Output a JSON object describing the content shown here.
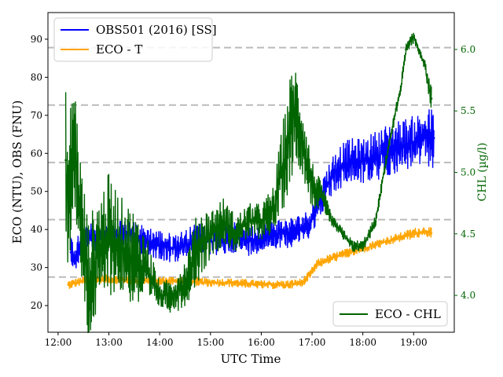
{
  "chart_data": {
    "type": "line",
    "xlabel": "UTC Time",
    "ylabel_left": "ECO (NTU), OBS (FNU)",
    "ylabel_right": "CHL (µg/l)",
    "x_ticks": [
      "12:00",
      "13:00",
      "14:00",
      "15:00",
      "16:00",
      "17:00",
      "18:00",
      "19:00"
    ],
    "x_range_hours": [
      11.8,
      19.8
    ],
    "y_left_ticks": [
      20,
      30,
      40,
      50,
      60,
      70,
      80,
      90
    ],
    "y_left_range": [
      13,
      97
    ],
    "y_right_ticks": [
      "4.0",
      "4.5",
      "5.0",
      "5.5",
      "6.0"
    ],
    "y_right_range": [
      3.7,
      6.3
    ],
    "gridlines_left": [
      27.5,
      42.6,
      57.6,
      72.7,
      87.8
    ],
    "grid": "dashed horizontal",
    "legend_left_placement": "top-left",
    "legend_right_placement": "bottom-right",
    "series": [
      {
        "name": "OBS501 (2016) [SS]",
        "axis": "left",
        "color": "#0000ff",
        "x": [
          12.25,
          12.33,
          12.45,
          12.6,
          12.75,
          13.0,
          13.25,
          13.5,
          13.75,
          14.0,
          14.25,
          14.5,
          14.75,
          15.0,
          15.25,
          15.5,
          15.75,
          16.0,
          16.25,
          16.5,
          16.75,
          16.9,
          17.0,
          17.15,
          17.3,
          17.5,
          17.75,
          18.0,
          18.25,
          18.5,
          18.75,
          19.0,
          19.25,
          19.4
        ],
        "y": [
          34,
          33,
          36,
          38,
          37,
          38,
          39,
          38,
          37,
          36,
          35,
          36,
          38,
          37,
          37,
          38,
          37,
          38,
          39,
          39,
          40,
          41,
          43,
          47,
          52,
          56,
          58,
          58,
          59,
          61,
          62,
          63,
          64,
          64
        ],
        "band": [
          4,
          4,
          4,
          4,
          4,
          4,
          4,
          4,
          4,
          4,
          4,
          4,
          4,
          4,
          4,
          4,
          4,
          4,
          4,
          4,
          4,
          4,
          4,
          4,
          5,
          6,
          6,
          6,
          7,
          7,
          7,
          7,
          8,
          8
        ]
      },
      {
        "name": "ECO - T",
        "axis": "left",
        "color": "#ffa500",
        "x": [
          12.2,
          12.5,
          12.75,
          13.0,
          13.5,
          14.0,
          14.5,
          15.0,
          15.5,
          16.0,
          16.5,
          16.8,
          16.95,
          17.1,
          17.3,
          17.5,
          17.75,
          18.0,
          18.25,
          18.5,
          18.75,
          19.0,
          19.25,
          19.35
        ],
        "y": [
          25.5,
          26.5,
          27,
          27,
          26.5,
          26.5,
          26.5,
          26,
          26,
          25.5,
          25.5,
          26,
          28,
          31,
          32,
          33,
          34,
          35,
          36,
          37,
          38,
          39,
          39.5,
          39
        ],
        "band": [
          1.2,
          1.2,
          1.2,
          1.2,
          1.2,
          1.2,
          1.2,
          1.2,
          1.2,
          1.2,
          1.2,
          1.2,
          1.2,
          1.2,
          1.3,
          1.3,
          1.3,
          1.3,
          1.3,
          1.3,
          1.3,
          1.5,
          1.5,
          1.5
        ]
      },
      {
        "name": "ECO - CHL",
        "axis": "right",
        "color": "#006400",
        "x": [
          12.15,
          12.2,
          12.3,
          12.45,
          12.6,
          12.75,
          13.0,
          13.25,
          13.5,
          13.75,
          14.0,
          14.25,
          14.5,
          14.75,
          15.0,
          15.25,
          15.5,
          15.75,
          16.0,
          16.25,
          16.4,
          16.55,
          16.65,
          16.8,
          17.0,
          17.2,
          17.4,
          17.6,
          17.8,
          18.0,
          18.25,
          18.5,
          18.75,
          18.85,
          19.0,
          19.2,
          19.35
        ],
        "y": [
          5.1,
          4.7,
          5.3,
          4.6,
          4.1,
          4.3,
          4.5,
          4.4,
          4.3,
          4.2,
          4.0,
          4.0,
          4.1,
          4.4,
          4.5,
          4.6,
          4.5,
          4.6,
          4.6,
          4.7,
          5.0,
          5.3,
          5.5,
          5.3,
          4.9,
          4.8,
          4.6,
          4.5,
          4.4,
          4.4,
          4.6,
          5.2,
          5.7,
          6.0,
          6.1,
          5.9,
          5.6
        ],
        "band": [
          0.6,
          0.6,
          0.6,
          0.5,
          0.5,
          0.5,
          0.5,
          0.4,
          0.4,
          0.3,
          0.1,
          0.15,
          0.2,
          0.3,
          0.2,
          0.2,
          0.15,
          0.15,
          0.15,
          0.2,
          0.35,
          0.45,
          0.45,
          0.3,
          0.2,
          0.1,
          0.05,
          0.05,
          0.05,
          0.05,
          0.05,
          0.05,
          0.05,
          0.05,
          0.05,
          0.05,
          0.1
        ]
      }
    ]
  }
}
